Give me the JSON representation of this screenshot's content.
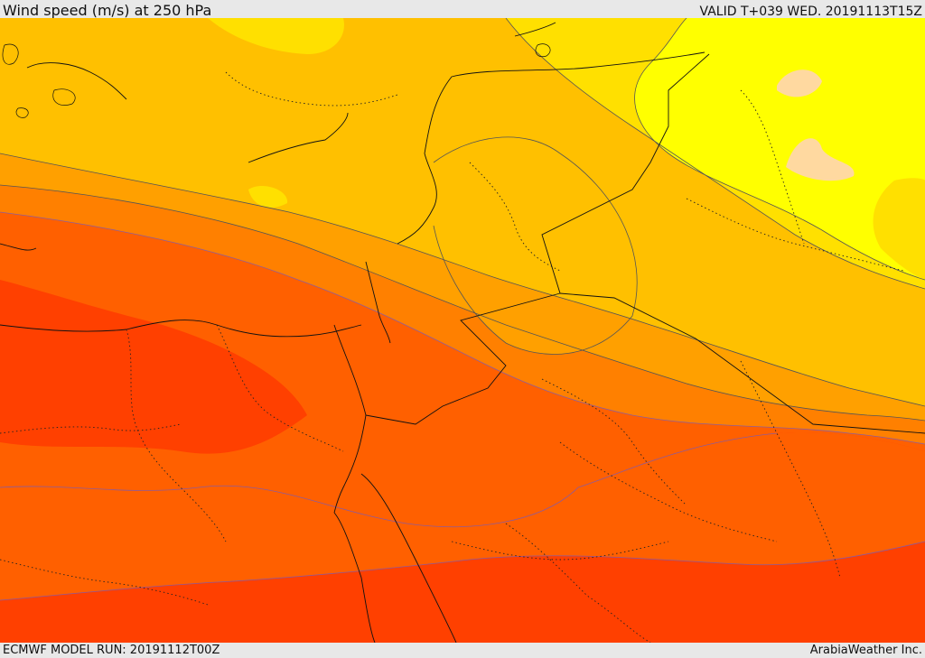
{
  "header": {
    "title": "Wind speed (m/s) at 250 hPa",
    "valid": "VALID T+039 WED. 20191113T15Z"
  },
  "footer": {
    "model_run": "ECMWF MODEL RUN: 20191112T00Z",
    "credit": "ArabiaWeather Inc."
  },
  "colors": {
    "band_lightest": "#ffd9a0",
    "band_1": "#ffff00",
    "band_2": "#ffe000",
    "band_3": "#ffc000",
    "band_4": "#ffa000",
    "band_5": "#ff8000",
    "band_6": "#ff6000",
    "band_7": "#ff4000"
  }
}
